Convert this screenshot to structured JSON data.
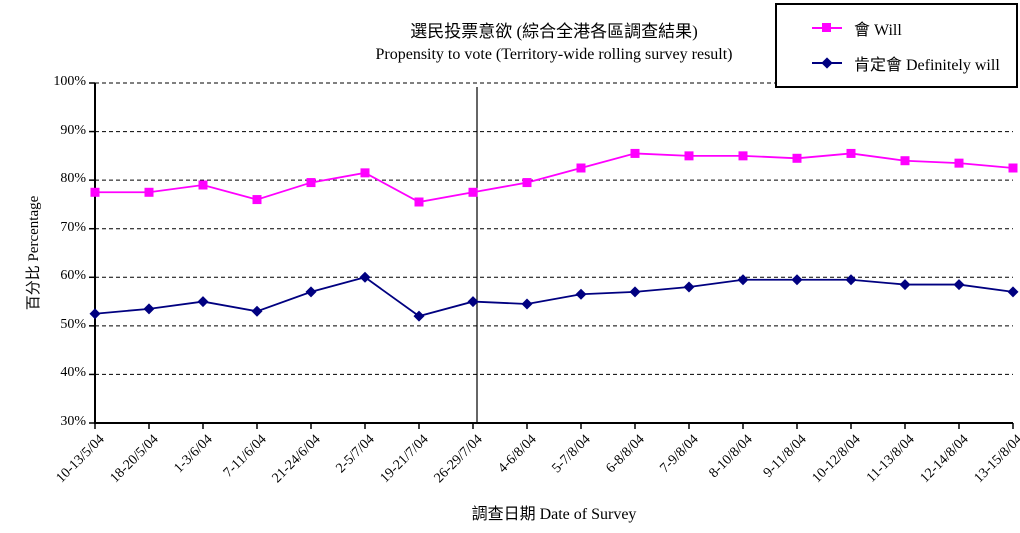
{
  "title": {
    "zh": "選民投票意欲 (綜合全港各區調查結果)",
    "en": "Propensity to vote (Territory-wide rolling survey result)"
  },
  "legend": {
    "position": "top-right",
    "border_color": "#000000",
    "background": "#ffffff"
  },
  "colors": {
    "will": "#ff00ff",
    "definitely_will": "#000080",
    "axis": "#000000",
    "gridline": "#000000",
    "background": "#ffffff"
  },
  "chart_data": {
    "type": "line",
    "title": "選民投票意欲 (綜合全港各區調查結果)",
    "subtitle": "Propensity to vote (Territory-wide rolling survey result)",
    "xlabel": "調查日期 Date of Survey",
    "ylabel": "百分比 Percentage",
    "ylim": [
      30,
      100
    ],
    "ytick_step": 10,
    "ytick_labels": [
      "100%",
      "90%",
      "80%",
      "70%",
      "60%",
      "50%",
      "40%",
      "30%"
    ],
    "grid": "horizontal-dashed",
    "legend_position": "top-right",
    "categories": [
      "10-13/5/04",
      "18-20/5/04",
      "1-3/6/04",
      "7-11/6/04",
      "21-24/6/04",
      "2-5/7/04",
      "19-21/7/04",
      "26-29/7/04",
      "4-6/8/04",
      "5-7/8/04",
      "6-8/8/04",
      "7-9/8/04",
      "8-10/8/04",
      "9-11/8/04",
      "10-12/8/04",
      "11-13/8/04",
      "12-14/8/04",
      "13-15/8/04"
    ],
    "series": [
      {
        "name": "會 Will",
        "color": "#ff00ff",
        "marker": "square",
        "values": [
          77.5,
          77.5,
          79,
          76,
          79.5,
          81.5,
          75.5,
          77.5,
          79.5,
          82.5,
          85.5,
          85,
          85,
          84.5,
          85.5,
          84,
          83.5,
          82.5
        ]
      },
      {
        "name": "肯定會 Definitely will",
        "color": "#000080",
        "marker": "diamond",
        "values": [
          52.5,
          53.5,
          55,
          53,
          57,
          60,
          52,
          55,
          54.5,
          56.5,
          57,
          58,
          59.5,
          59.5,
          59.5,
          58.5,
          58.5,
          57
        ]
      }
    ],
    "annotations": [
      {
        "type": "vline",
        "at_category": "26-29/7/04",
        "at_category_index": 7,
        "style": "solid-black"
      }
    ]
  }
}
